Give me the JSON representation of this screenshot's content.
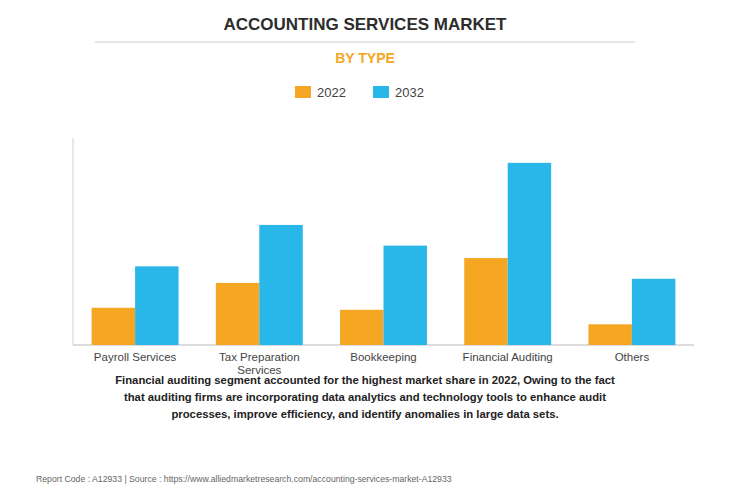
{
  "chart_data": {
    "type": "bar",
    "title": "ACCOUNTING SERVICES MARKET",
    "subtitle": "BY TYPE",
    "categories": [
      "Payroll Services",
      "Tax Preparation\nServices",
      "Bookkeeping",
      "Financial Auditing",
      "Others"
    ],
    "series": [
      {
        "name": "2022",
        "color": "#F5A623",
        "values": [
          18,
          30,
          17,
          42,
          10
        ]
      },
      {
        "name": "2032",
        "color": "#29B6E8",
        "values": [
          38,
          58,
          48,
          88,
          32
        ]
      }
    ],
    "ylim": [
      0,
      100
    ],
    "grid": false,
    "legend": "top",
    "tick_labels": "x",
    "annotations": [
      "Financial auditing segment accounted for the highest market share in 2022, Owing to the fact\nthat auditing firms are incorporating data analytics and technology tools to enhance audit\nprocesses, improve efficiency, and identify anomalies in large data sets.",
      "Report Code : A12933  |  Source : https://www.alliedmarketresearch.com/accounting-services-market-A12933"
    ]
  }
}
